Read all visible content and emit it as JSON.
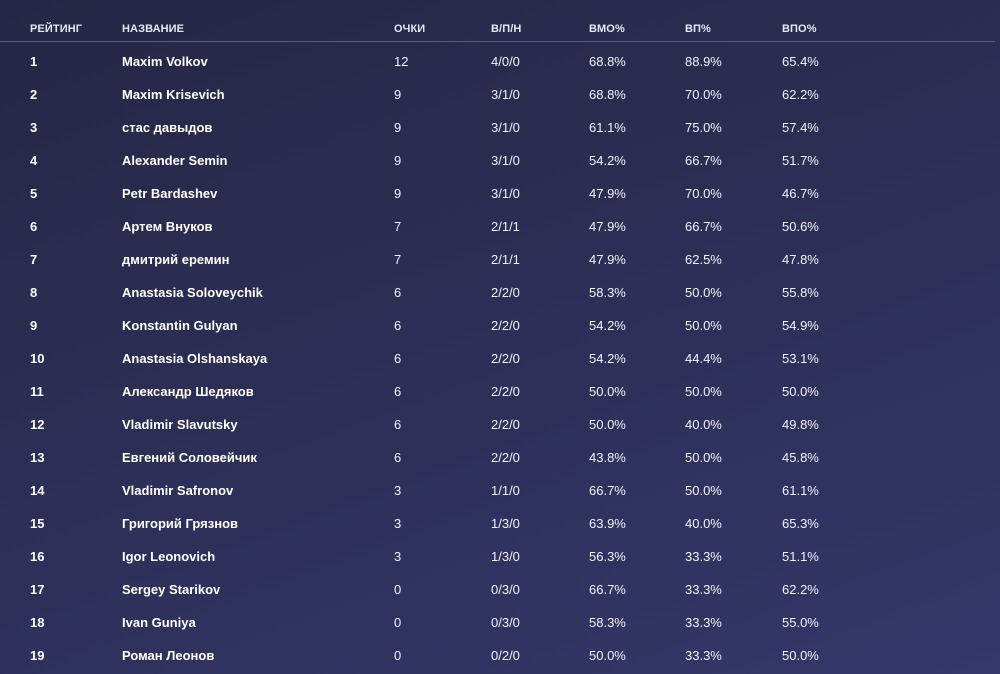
{
  "columns": {
    "rank": "РЕЙТИНГ",
    "name": "НАЗВАНИЕ",
    "points": "ОЧКИ",
    "wld": "В/П/Н",
    "vmo": "ВМО%",
    "vp": "ВП%",
    "vpo": "ВПО%"
  },
  "rows": [
    {
      "rank": "1",
      "name": "Maxim Volkov",
      "points": "12",
      "wld": "4/0/0",
      "vmo": "68.8%",
      "vp": "88.9%",
      "vpo": "65.4%"
    },
    {
      "rank": "2",
      "name": "Maxim Krisevich",
      "points": "9",
      "wld": "3/1/0",
      "vmo": "68.8%",
      "vp": "70.0%",
      "vpo": "62.2%"
    },
    {
      "rank": "3",
      "name": "стас давыдов",
      "points": "9",
      "wld": "3/1/0",
      "vmo": "61.1%",
      "vp": "75.0%",
      "vpo": "57.4%"
    },
    {
      "rank": "4",
      "name": "Alexander Semin",
      "points": "9",
      "wld": "3/1/0",
      "vmo": "54.2%",
      "vp": "66.7%",
      "vpo": "51.7%"
    },
    {
      "rank": "5",
      "name": "Petr Bardashev",
      "points": "9",
      "wld": "3/1/0",
      "vmo": "47.9%",
      "vp": "70.0%",
      "vpo": "46.7%"
    },
    {
      "rank": "6",
      "name": "Артем Внуков",
      "points": "7",
      "wld": "2/1/1",
      "vmo": "47.9%",
      "vp": "66.7%",
      "vpo": "50.6%"
    },
    {
      "rank": "7",
      "name": "дмитрий еремин",
      "points": "7",
      "wld": "2/1/1",
      "vmo": "47.9%",
      "vp": "62.5%",
      "vpo": "47.8%"
    },
    {
      "rank": "8",
      "name": "Anastasia Soloveychik",
      "points": "6",
      "wld": "2/2/0",
      "vmo": "58.3%",
      "vp": "50.0%",
      "vpo": "55.8%"
    },
    {
      "rank": "9",
      "name": "Konstantin Gulyan",
      "points": "6",
      "wld": "2/2/0",
      "vmo": "54.2%",
      "vp": "50.0%",
      "vpo": "54.9%"
    },
    {
      "rank": "10",
      "name": "Anastasia Olshanskaya",
      "points": "6",
      "wld": "2/2/0",
      "vmo": "54.2%",
      "vp": "44.4%",
      "vpo": "53.1%"
    },
    {
      "rank": "11",
      "name": "Александр Шедяков",
      "points": "6",
      "wld": "2/2/0",
      "vmo": "50.0%",
      "vp": "50.0%",
      "vpo": "50.0%"
    },
    {
      "rank": "12",
      "name": "Vladimir Slavutsky",
      "points": "6",
      "wld": "2/2/0",
      "vmo": "50.0%",
      "vp": "40.0%",
      "vpo": "49.8%"
    },
    {
      "rank": "13",
      "name": "Евгений Соловейчик",
      "points": "6",
      "wld": "2/2/0",
      "vmo": "43.8%",
      "vp": "50.0%",
      "vpo": "45.8%"
    },
    {
      "rank": "14",
      "name": "Vladimir Safronov",
      "points": "3",
      "wld": "1/1/0",
      "vmo": "66.7%",
      "vp": "50.0%",
      "vpo": "61.1%"
    },
    {
      "rank": "15",
      "name": "Григорий Грязнов",
      "points": "3",
      "wld": "1/3/0",
      "vmo": "63.9%",
      "vp": "40.0%",
      "vpo": "65.3%"
    },
    {
      "rank": "16",
      "name": "Igor Leonovich",
      "points": "3",
      "wld": "1/3/0",
      "vmo": "56.3%",
      "vp": "33.3%",
      "vpo": "51.1%"
    },
    {
      "rank": "17",
      "name": "Sergey Starikov",
      "points": "0",
      "wld": "0/3/0",
      "vmo": "66.7%",
      "vp": "33.3%",
      "vpo": "62.2%"
    },
    {
      "rank": "18",
      "name": "Ivan Guniya",
      "points": "0",
      "wld": "0/3/0",
      "vmo": "58.3%",
      "vp": "33.3%",
      "vpo": "55.0%"
    },
    {
      "rank": "19",
      "name": "Роман Леонов",
      "points": "0",
      "wld": "0/2/0",
      "vmo": "50.0%",
      "vp": "33.3%",
      "vpo": "50.0%"
    }
  ]
}
